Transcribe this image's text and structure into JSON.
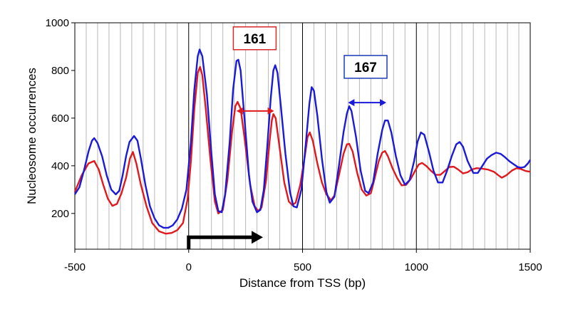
{
  "chart_data": {
    "type": "line",
    "title": "",
    "xlabel": "Distance from TSS (bp)",
    "ylabel": "Nucleosome occurrences",
    "xlim": [
      -500,
      1500
    ],
    "ylim": [
      50,
      1000
    ],
    "x_ticks": [
      "-500",
      "0",
      "500",
      "1000",
      "1500"
    ],
    "y_ticks": [
      "200",
      "400",
      "600",
      "800",
      "1000"
    ],
    "grid": "vertical minor lines every 50 bp; major lines at 0, 500, 1000",
    "series": [
      {
        "color": "#e0191e",
        "points": [
          [
            -500,
            290
          ],
          [
            -470,
            360
          ],
          [
            -440,
            410
          ],
          [
            -415,
            420
          ],
          [
            -395,
            385
          ],
          [
            -375,
            320
          ],
          [
            -355,
            262
          ],
          [
            -335,
            232
          ],
          [
            -315,
            240
          ],
          [
            -295,
            285
          ],
          [
            -275,
            350
          ],
          [
            -258,
            430
          ],
          [
            -245,
            458
          ],
          [
            -230,
            410
          ],
          [
            -210,
            320
          ],
          [
            -185,
            230
          ],
          [
            -160,
            160
          ],
          [
            -130,
            125
          ],
          [
            -100,
            115
          ],
          [
            -75,
            118
          ],
          [
            -50,
            130
          ],
          [
            -25,
            160
          ],
          [
            -5,
            260
          ],
          [
            10,
            420
          ],
          [
            25,
            640
          ],
          [
            40,
            790
          ],
          [
            50,
            815
          ],
          [
            60,
            780
          ],
          [
            75,
            640
          ],
          [
            95,
            430
          ],
          [
            115,
            250
          ],
          [
            130,
            200
          ],
          [
            150,
            215
          ],
          [
            170,
            340
          ],
          [
            190,
            540
          ],
          [
            205,
            650
          ],
          [
            215,
            668
          ],
          [
            228,
            640
          ],
          [
            245,
            520
          ],
          [
            270,
            320
          ],
          [
            290,
            230
          ],
          [
            305,
            210
          ],
          [
            320,
            225
          ],
          [
            340,
            340
          ],
          [
            355,
            500
          ],
          [
            365,
            590
          ],
          [
            372,
            617
          ],
          [
            382,
            600
          ],
          [
            400,
            470
          ],
          [
            420,
            330
          ],
          [
            440,
            250
          ],
          [
            455,
            235
          ],
          [
            470,
            245
          ],
          [
            490,
            320
          ],
          [
            510,
            440
          ],
          [
            522,
            520
          ],
          [
            532,
            540
          ],
          [
            545,
            505
          ],
          [
            565,
            410
          ],
          [
            585,
            330
          ],
          [
            605,
            280
          ],
          [
            625,
            255
          ],
          [
            640,
            275
          ],
          [
            660,
            360
          ],
          [
            680,
            450
          ],
          [
            695,
            490
          ],
          [
            705,
            492
          ],
          [
            720,
            460
          ],
          [
            740,
            370
          ],
          [
            760,
            300
          ],
          [
            780,
            275
          ],
          [
            800,
            285
          ],
          [
            815,
            340
          ],
          [
            835,
            420
          ],
          [
            850,
            455
          ],
          [
            862,
            462
          ],
          [
            875,
            440
          ],
          [
            895,
            390
          ],
          [
            915,
            350
          ],
          [
            935,
            318
          ],
          [
            955,
            320
          ],
          [
            975,
            345
          ],
          [
            995,
            380
          ],
          [
            1010,
            405
          ],
          [
            1025,
            412
          ],
          [
            1045,
            398
          ],
          [
            1065,
            378
          ],
          [
            1085,
            362
          ],
          [
            1105,
            362
          ],
          [
            1125,
            378
          ],
          [
            1145,
            395
          ],
          [
            1165,
            396
          ],
          [
            1185,
            383
          ],
          [
            1205,
            368
          ],
          [
            1225,
            373
          ],
          [
            1245,
            385
          ],
          [
            1265,
            390
          ],
          [
            1290,
            388
          ],
          [
            1315,
            384
          ],
          [
            1340,
            375
          ],
          [
            1360,
            360
          ],
          [
            1375,
            350
          ],
          [
            1395,
            360
          ],
          [
            1420,
            380
          ],
          [
            1440,
            390
          ],
          [
            1460,
            386
          ],
          [
            1480,
            378
          ],
          [
            1500,
            375
          ]
        ]
      },
      {
        "color": "#1a1ad8",
        "points": [
          [
            -500,
            280
          ],
          [
            -480,
            310
          ],
          [
            -460,
            380
          ],
          [
            -440,
            460
          ],
          [
            -425,
            505
          ],
          [
            -415,
            516
          ],
          [
            -400,
            495
          ],
          [
            -380,
            440
          ],
          [
            -360,
            360
          ],
          [
            -340,
            300
          ],
          [
            -320,
            280
          ],
          [
            -305,
            295
          ],
          [
            -290,
            360
          ],
          [
            -275,
            440
          ],
          [
            -260,
            500
          ],
          [
            -240,
            525
          ],
          [
            -225,
            505
          ],
          [
            -210,
            430
          ],
          [
            -190,
            320
          ],
          [
            -170,
            230
          ],
          [
            -150,
            180
          ],
          [
            -130,
            150
          ],
          [
            -110,
            140
          ],
          [
            -90,
            140
          ],
          [
            -70,
            150
          ],
          [
            -50,
            175
          ],
          [
            -30,
            220
          ],
          [
            -10,
            300
          ],
          [
            10,
            500
          ],
          [
            25,
            720
          ],
          [
            40,
            860
          ],
          [
            48,
            888
          ],
          [
            60,
            860
          ],
          [
            80,
            700
          ],
          [
            100,
            450
          ],
          [
            115,
            280
          ],
          [
            130,
            210
          ],
          [
            145,
            205
          ],
          [
            160,
            280
          ],
          [
            180,
            500
          ],
          [
            195,
            720
          ],
          [
            210,
            840
          ],
          [
            218,
            845
          ],
          [
            228,
            800
          ],
          [
            245,
            600
          ],
          [
            265,
            360
          ],
          [
            280,
            250
          ],
          [
            300,
            205
          ],
          [
            315,
            215
          ],
          [
            330,
            300
          ],
          [
            345,
            480
          ],
          [
            360,
            680
          ],
          [
            372,
            800
          ],
          [
            380,
            822
          ],
          [
            390,
            790
          ],
          [
            405,
            650
          ],
          [
            425,
            450
          ],
          [
            445,
            290
          ],
          [
            460,
            230
          ],
          [
            475,
            225
          ],
          [
            495,
            300
          ],
          [
            515,
            500
          ],
          [
            530,
            660
          ],
          [
            540,
            730
          ],
          [
            550,
            715
          ],
          [
            565,
            610
          ],
          [
            585,
            430
          ],
          [
            605,
            290
          ],
          [
            620,
            245
          ],
          [
            640,
            270
          ],
          [
            660,
            400
          ],
          [
            680,
            540
          ],
          [
            695,
            620
          ],
          [
            705,
            650
          ],
          [
            715,
            630
          ],
          [
            735,
            520
          ],
          [
            755,
            380
          ],
          [
            775,
            295
          ],
          [
            790,
            285
          ],
          [
            810,
            330
          ],
          [
            830,
            450
          ],
          [
            850,
            550
          ],
          [
            862,
            590
          ],
          [
            875,
            590
          ],
          [
            890,
            540
          ],
          [
            910,
            440
          ],
          [
            930,
            360
          ],
          [
            950,
            320
          ],
          [
            970,
            340
          ],
          [
            990,
            420
          ],
          [
            1005,
            500
          ],
          [
            1020,
            540
          ],
          [
            1035,
            530
          ],
          [
            1055,
            460
          ],
          [
            1075,
            380
          ],
          [
            1095,
            330
          ],
          [
            1115,
            330
          ],
          [
            1135,
            380
          ],
          [
            1155,
            440
          ],
          [
            1175,
            490
          ],
          [
            1190,
            500
          ],
          [
            1205,
            480
          ],
          [
            1225,
            420
          ],
          [
            1250,
            370
          ],
          [
            1270,
            370
          ],
          [
            1290,
            400
          ],
          [
            1310,
            430
          ],
          [
            1330,
            445
          ],
          [
            1350,
            455
          ],
          [
            1370,
            450
          ],
          [
            1390,
            435
          ],
          [
            1410,
            418
          ],
          [
            1430,
            405
          ],
          [
            1445,
            395
          ],
          [
            1460,
            392
          ],
          [
            1475,
            395
          ],
          [
            1490,
            410
          ],
          [
            1500,
            425
          ]
        ]
      }
    ],
    "annotations": [
      {
        "text": "161",
        "box_color": "#d42a2a",
        "arrow_color": "#e0191e",
        "x_from": 210,
        "x_to": 375,
        "y": 630,
        "box_x": 290,
        "box_y": 935
      },
      {
        "text": "167",
        "box_color": "#1a3db8",
        "arrow_color": "#1a1ad8",
        "x_from": 700,
        "x_to": 868,
        "y": 665,
        "box_x": 777,
        "box_y": 815
      }
    ],
    "tss_arrow": {
      "x0": 0,
      "x1": 320,
      "y_top": 100,
      "y_bottom": 50,
      "color": "#000000"
    }
  }
}
